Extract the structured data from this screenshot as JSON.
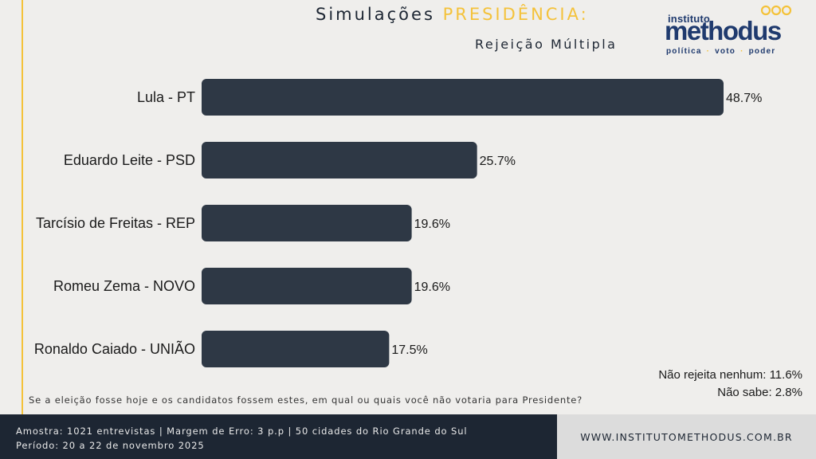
{
  "header": {
    "title_prefix": "Simulações",
    "title_highlight": "PRESIDÊNCIA:",
    "subtitle": "Rejeição Múltipla"
  },
  "logo": {
    "small": "instituto",
    "big": "methodus",
    "tag1": "política",
    "tag2": "voto",
    "tag3": "poder",
    "colors": {
      "primary": "#1f3a6e",
      "accent": "#f4c23a"
    }
  },
  "colors": {
    "bar": "#2e3845",
    "accent": "#f4c23a",
    "footer_dark": "#1d2633",
    "footer_light": "#dcdcdc",
    "background": "#efeeec"
  },
  "chart_data": {
    "type": "bar",
    "orientation": "horizontal",
    "categories": [
      "Lula - PT",
      "Eduardo Leite - PSD",
      "Tarcísio de Freitas - REP",
      "Romeu Zema - NOVO",
      "Ronaldo Caiado - UNIÃO"
    ],
    "values": [
      48.7,
      25.7,
      19.6,
      19.6,
      17.5
    ],
    "value_labels": [
      "48.7%",
      "25.7%",
      "19.6%",
      "19.6%",
      "17.5%"
    ],
    "xlim": [
      0,
      50
    ],
    "grid": false,
    "legend": false
  },
  "notes": {
    "line1": "Não rejeita nenhum: 11.6%",
    "line2": "Não sabe: 2.8%"
  },
  "question": "Se a eleição fosse hoje e os candidatos fossem estes, em qual ou quais você não votaria para Presidente?",
  "footer": {
    "line1": "Amostra: 1021 entrevistas | Margem de Erro: 3 p.p | 50 cidades do Rio Grande do Sul",
    "line2": "Período: 20 a 22 de novembro 2025",
    "website": "WWW.INSTITUTOMETHODUS.COM.BR"
  }
}
